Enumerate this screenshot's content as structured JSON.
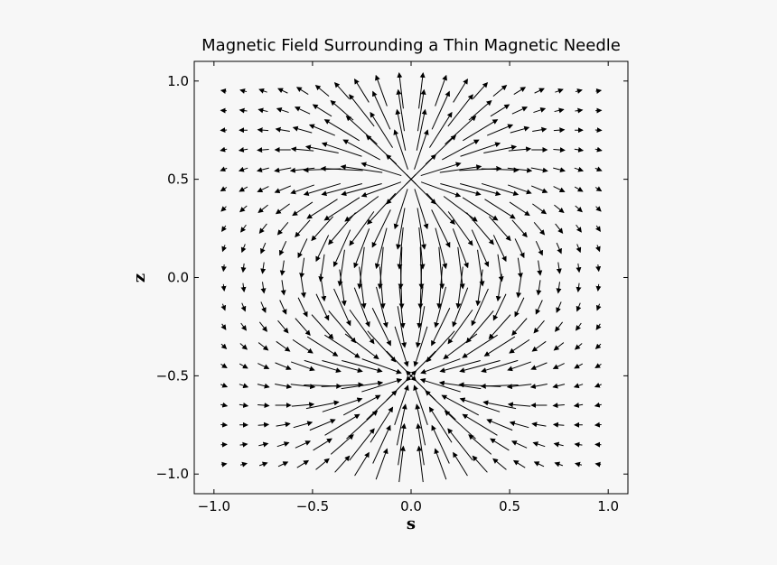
{
  "chart_data": {
    "type": "quiver",
    "title": "Magnetic Field Surrounding a Thin Magnetic Needle",
    "xlabel": "s",
    "ylabel": "z",
    "xlim": [
      -1.1,
      1.1
    ],
    "ylim": [
      -1.1,
      1.1
    ],
    "xticks": [
      -1.0,
      -0.5,
      0.0,
      0.5,
      1.0
    ],
    "yticks": [
      -1.0,
      -0.5,
      0.0,
      0.5,
      1.0
    ],
    "xtick_labels": [
      "−1.0",
      "−0.5",
      "0.0",
      "0.5",
      "1.0"
    ],
    "ytick_labels": [
      "−1.0",
      "−0.5",
      "0.0",
      "0.5",
      "1.0"
    ],
    "grid": false,
    "field_model": {
      "description": "dipole field of a thin needle",
      "north_pole": [
        0.0,
        0.5
      ],
      "south_pole": [
        0.0,
        -0.5
      ]
    },
    "grid_x": [
      -0.95,
      -0.85,
      -0.75,
      -0.65,
      -0.55,
      -0.45,
      -0.35,
      -0.25,
      -0.15,
      -0.05,
      0.05,
      0.15,
      0.25,
      0.35,
      0.45,
      0.55,
      0.65,
      0.75,
      0.85,
      0.95
    ],
    "grid_y": [
      0.95,
      0.85,
      0.75,
      0.65,
      0.55,
      0.45,
      0.35,
      0.25,
      0.15,
      0.05,
      -0.05,
      -0.15,
      -0.25,
      -0.35,
      -0.45,
      -0.55,
      -0.65,
      -0.75,
      -0.85,
      -0.95
    ],
    "arrow_color": "#000000"
  }
}
